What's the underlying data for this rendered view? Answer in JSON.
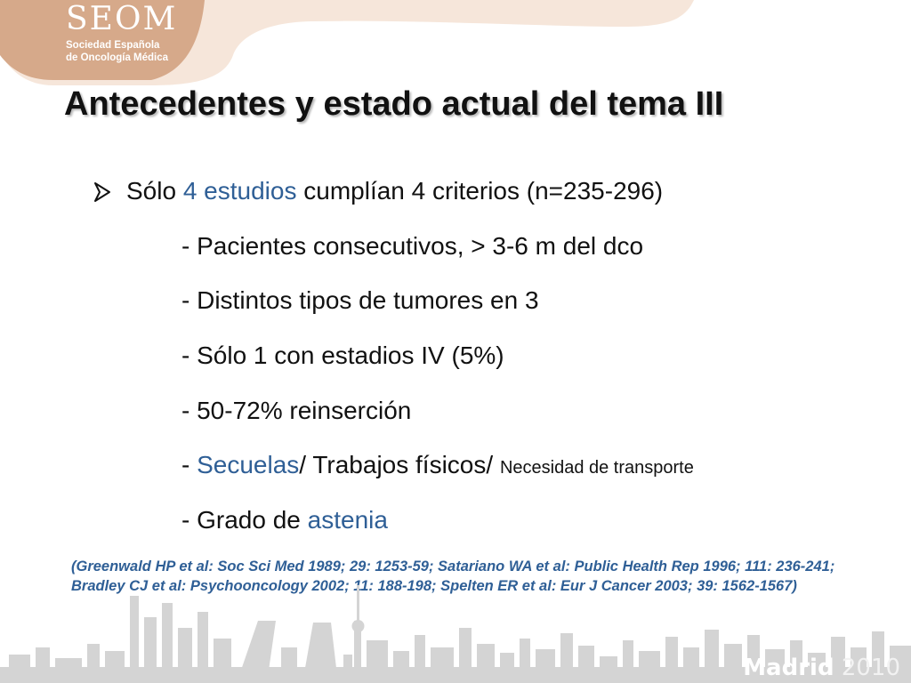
{
  "logo": {
    "name": "SEOM",
    "subtitle_line1": "Sociedad Española",
    "subtitle_line2": "de Oncología Médica"
  },
  "title": "Antecedentes y estado actual del tema III",
  "bullet": {
    "prefix": "Sólo ",
    "accent": "4 estudios",
    "suffix": " cumplían 4 criterios (n=235-296)"
  },
  "sub_items": [
    "- Pacientes consecutivos, > 3-6 m del dco",
    "- Distintos tipos de tumores en 3",
    "- Sólo 1 con estadios IV (5%)",
    "- 50-72% reinserción"
  ],
  "item_secuelas": {
    "dash": "- ",
    "accent": "Secuelas",
    "middle": "/ Trabajos físicos/ ",
    "small": "Necesidad de transporte"
  },
  "item_astenia": {
    "prefix": "- Grado de ",
    "accent": "astenia"
  },
  "citation": "(Greenwald HP et al: Soc Sci Med 1989; 29: 1253-59;  Satariano WA et al: Public Health Rep 1996; 111: 236-241; Bradley CJ et al: Psychooncology 2002; 11: 188-198; Spelten ER et al: Eur J Cancer 2003; 39: 1562-1567)",
  "footer": {
    "city": "Madrid",
    "year": "2010"
  },
  "colors": {
    "accent_blue": "#2f5f96",
    "header_tan": "#d6a98a",
    "skyline_gray": "#cfcfcf",
    "text": "#111111"
  },
  "icons": {
    "bullet": "arrow-bullet-icon",
    "skyline": "madrid-skyline-icon"
  }
}
